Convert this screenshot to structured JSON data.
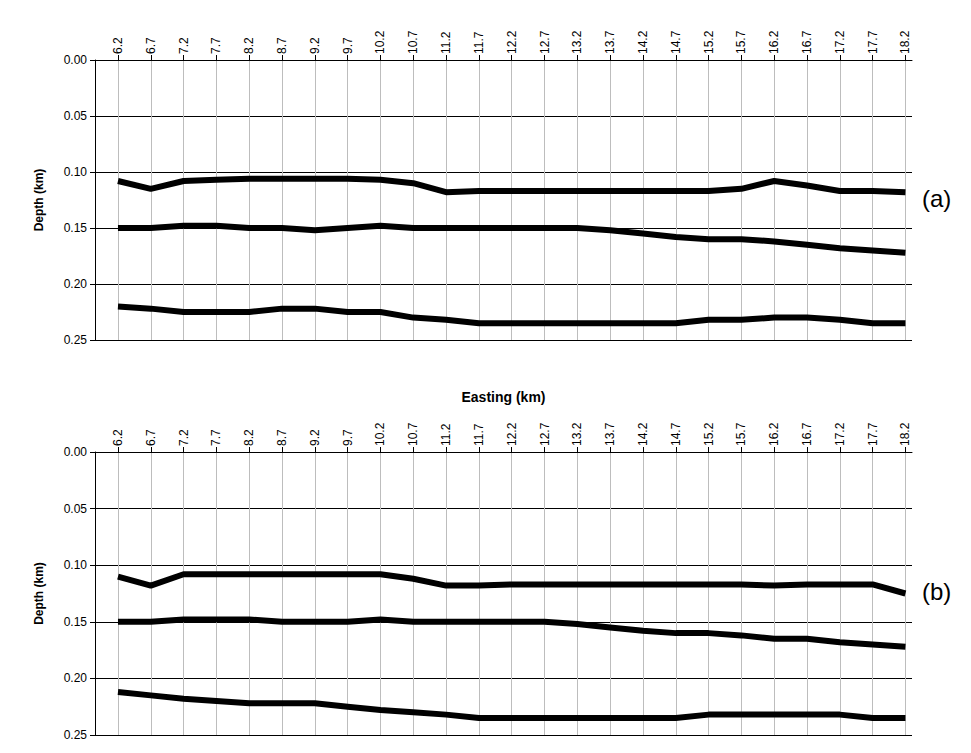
{
  "chart_data": [
    {
      "type": "line",
      "panel": "(a)",
      "y_label": "Depth (km)",
      "x": [
        6.2,
        6.7,
        7.2,
        7.7,
        8.2,
        8.7,
        9.2,
        9.7,
        10.2,
        10.7,
        11.2,
        11.7,
        12.2,
        12.7,
        13.2,
        13.7,
        14.2,
        14.7,
        15.2,
        15.7,
        16.2,
        16.7,
        17.2,
        17.7,
        18.2
      ],
      "xlim": [
        5.85,
        18.3
      ],
      "xticks": [
        6.2,
        6.7,
        7.2,
        7.7,
        8.2,
        8.7,
        9.2,
        9.7,
        10.2,
        10.7,
        11.2,
        11.7,
        12.2,
        12.7,
        13.2,
        13.7,
        14.2,
        14.7,
        15.2,
        15.7,
        16.2,
        16.7,
        17.2,
        17.7,
        18.2
      ],
      "ylim": [
        0,
        0.25
      ],
      "yticks": [
        {
          "value": 0,
          "label": "0.00"
        },
        {
          "value": 0.05,
          "label": "0.05"
        },
        {
          "value": 0.1,
          "label": "0.10"
        },
        {
          "value": 0.15,
          "label": "0.15"
        },
        {
          "value": 0.2,
          "label": "0.20"
        },
        {
          "value": 0.25,
          "label": "0.25"
        }
      ],
      "grid": true,
      "color": "#000000",
      "series": [
        {
          "values": [
            0.108,
            0.115,
            0.108,
            0.107,
            0.106,
            0.106,
            0.106,
            0.106,
            0.107,
            0.11,
            0.118,
            0.117,
            0.117,
            0.117,
            0.117,
            0.117,
            0.117,
            0.117,
            0.117,
            0.115,
            0.108,
            0.112,
            0.117,
            0.117,
            0.118
          ]
        },
        {
          "values": [
            0.15,
            0.15,
            0.148,
            0.148,
            0.15,
            0.15,
            0.152,
            0.15,
            0.148,
            0.15,
            0.15,
            0.15,
            0.15,
            0.15,
            0.15,
            0.152,
            0.155,
            0.158,
            0.16,
            0.16,
            0.162,
            0.165,
            0.168,
            0.17,
            0.172
          ]
        },
        {
          "values": [
            0.22,
            0.222,
            0.225,
            0.225,
            0.225,
            0.222,
            0.222,
            0.225,
            0.225,
            0.23,
            0.232,
            0.235,
            0.235,
            0.235,
            0.235,
            0.235,
            0.235,
            0.235,
            0.232,
            0.232,
            0.23,
            0.23,
            0.232,
            0.235,
            0.235
          ]
        }
      ]
    },
    {
      "type": "line",
      "panel": "(b)",
      "x_label": "Easting (km)",
      "y_label": "Depth (km)",
      "x": [
        6.2,
        6.7,
        7.2,
        7.7,
        8.2,
        8.7,
        9.2,
        9.7,
        10.2,
        10.7,
        11.2,
        11.7,
        12.2,
        12.7,
        13.2,
        13.7,
        14.2,
        14.7,
        15.2,
        15.7,
        16.2,
        16.7,
        17.2,
        17.7,
        18.2
      ],
      "xlim": [
        5.85,
        18.3
      ],
      "xticks": [
        6.2,
        6.7,
        7.2,
        7.7,
        8.2,
        8.7,
        9.2,
        9.7,
        10.2,
        10.7,
        11.2,
        11.7,
        12.2,
        12.7,
        13.2,
        13.7,
        14.2,
        14.7,
        15.2,
        15.7,
        16.2,
        16.7,
        17.2,
        17.7,
        18.2
      ],
      "ylim": [
        0,
        0.25
      ],
      "yticks": [
        {
          "value": 0,
          "label": "0.00"
        },
        {
          "value": 0.05,
          "label": "0.05"
        },
        {
          "value": 0.1,
          "label": "0.10"
        },
        {
          "value": 0.15,
          "label": "0.15"
        },
        {
          "value": 0.2,
          "label": "0.20"
        },
        {
          "value": 0.25,
          "label": "0.25"
        }
      ],
      "grid": true,
      "color": "#000000",
      "series": [
        {
          "values": [
            0.11,
            0.118,
            0.108,
            0.108,
            0.108,
            0.108,
            0.108,
            0.108,
            0.108,
            0.112,
            0.118,
            0.118,
            0.117,
            0.117,
            0.117,
            0.117,
            0.117,
            0.117,
            0.117,
            0.117,
            0.118,
            0.117,
            0.117,
            0.117,
            0.125
          ]
        },
        {
          "values": [
            0.15,
            0.15,
            0.148,
            0.148,
            0.148,
            0.15,
            0.15,
            0.15,
            0.148,
            0.15,
            0.15,
            0.15,
            0.15,
            0.15,
            0.152,
            0.155,
            0.158,
            0.16,
            0.16,
            0.162,
            0.165,
            0.165,
            0.168,
            0.17,
            0.172
          ]
        },
        {
          "values": [
            0.212,
            0.215,
            0.218,
            0.22,
            0.222,
            0.222,
            0.222,
            0.225,
            0.228,
            0.23,
            0.232,
            0.235,
            0.235,
            0.235,
            0.235,
            0.235,
            0.235,
            0.235,
            0.232,
            0.232,
            0.232,
            0.232,
            0.232,
            0.235,
            0.235
          ]
        }
      ]
    }
  ]
}
